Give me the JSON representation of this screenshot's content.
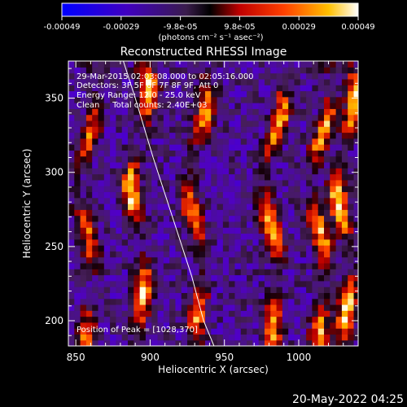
{
  "chart_data": {
    "type": "heatmap",
    "title": "Reconstructed RHESSI Image",
    "xlabel": "Heliocentric X (arcsec)",
    "ylabel": "Heliocentric Y (arcsec)",
    "xlim": [
      845,
      1040
    ],
    "ylim": [
      183,
      375
    ],
    "x_ticks": [
      850,
      900,
      950,
      1000
    ],
    "y_ticks": [
      200,
      250,
      300,
      350
    ],
    "colorbar": {
      "ticks": [
        "-0.00049",
        "-0.00029",
        "-9.8e-05",
        "9.8e-05",
        "0.00029",
        "0.00049"
      ],
      "unit": "(photons cm⁻² s⁻¹ asec⁻²)",
      "range": [
        -0.00049,
        0.00049
      ]
    },
    "annotations": [
      "29-Mar-2015 02:03:08.000 to 02:05:16.000",
      "Detectors: 3F 5F 6F 7F 8F 9F, Att 0",
      "Energy Range: 12.0 - 25.0 keV",
      "Clean     Total counts: 2.40E+03"
    ],
    "peak_label": "Position of Peak = [1028,370]",
    "peak": [
      1028,
      370
    ],
    "bright_streaks": [
      {
        "x_center": 858,
        "strength": 0.7
      },
      {
        "x_center": 893,
        "strength": 0.95
      },
      {
        "x_center": 932,
        "strength": 0.8
      },
      {
        "x_center": 983,
        "strength": 0.9
      },
      {
        "x_center": 1015,
        "strength": 0.85
      },
      {
        "x_center": 1032,
        "strength": 1.0
      }
    ],
    "limb_curve": [
      [
        882,
        375
      ],
      [
        890,
        350
      ],
      [
        902,
        310
      ],
      [
        915,
        270
      ],
      [
        928,
        230
      ],
      [
        936,
        200
      ],
      [
        943,
        183
      ]
    ]
  },
  "footer": {
    "date": "20-May-2022 04:25"
  }
}
